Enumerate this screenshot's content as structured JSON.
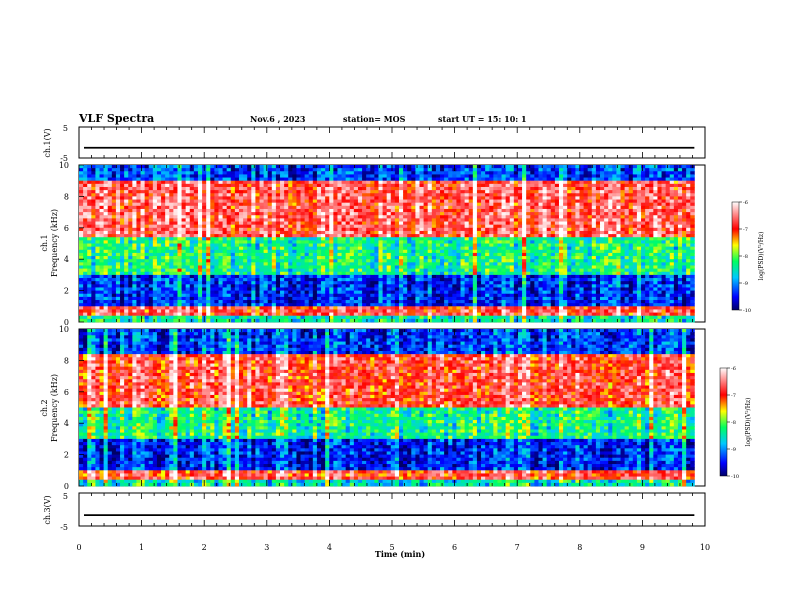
{
  "header": {
    "title": "VLF Spectra",
    "date": "Nov.6 , 2023",
    "station": "station= MOS",
    "start": "start UT = 15: 10: 1"
  },
  "chart_data": [
    {
      "type": "line",
      "ylabel": "ch.1(V)",
      "yticks": [
        "5",
        "-5"
      ],
      "ylim": [
        -5,
        5
      ],
      "xlim": [
        0,
        10
      ],
      "series": [
        {
          "values": [
            -1.7,
            -1.7
          ]
        }
      ]
    },
    {
      "type": "heatmap",
      "ylabel": "ch.1\nFrequency (kHz)",
      "yticks": [
        "10",
        "8",
        "6",
        "4",
        "2",
        "0"
      ],
      "ylim": [
        0,
        10
      ],
      "xlim": [
        0,
        9.83
      ],
      "colorbar": {
        "ticks": [
          "-6",
          "-7",
          "-8",
          "-9",
          "-10"
        ],
        "label": "log(PSD)(V²/Hz)",
        "range": [
          -10,
          -6
        ]
      },
      "bands": [
        {
          "f_low": 0,
          "f_high": 0.5,
          "level": -8.5
        },
        {
          "f_low": 0.5,
          "f_high": 1.0,
          "level": -6.8
        },
        {
          "f_low": 1.0,
          "f_high": 3.0,
          "level": -9.4
        },
        {
          "f_low": 3.0,
          "f_high": 5.5,
          "level": -8.3
        },
        {
          "f_low": 5.5,
          "f_high": 9.0,
          "level": -6.7
        },
        {
          "f_low": 9.0,
          "f_high": 10.0,
          "level": -9.3
        }
      ]
    },
    {
      "type": "heatmap",
      "ylabel": "ch.2\nFrequency (kHz)",
      "yticks": [
        "10",
        "8",
        "6",
        "4",
        "2",
        "0"
      ],
      "ylim": [
        0,
        10
      ],
      "xlim": [
        0,
        9.83
      ],
      "colorbar": {
        "ticks": [
          "-6",
          "-7",
          "-8",
          "-9",
          "-10"
        ],
        "label": "log(PSD)(V²/Hz)",
        "range": [
          -10,
          -6
        ]
      },
      "bands": [
        {
          "f_low": 0,
          "f_high": 0.5,
          "level": -8.5
        },
        {
          "f_low": 0.5,
          "f_high": 1.0,
          "level": -6.8
        },
        {
          "f_low": 1.0,
          "f_high": 3.0,
          "level": -9.4
        },
        {
          "f_low": 3.0,
          "f_high": 5.0,
          "level": -8.3
        },
        {
          "f_low": 5.0,
          "f_high": 8.5,
          "level": -6.8
        },
        {
          "f_low": 8.5,
          "f_high": 10.0,
          "level": -9.3
        }
      ]
    },
    {
      "type": "line",
      "ylabel": "ch.3(V)",
      "yticks": [
        "5",
        "-5"
      ],
      "ylim": [
        -5,
        5
      ],
      "xlim": [
        0,
        10
      ],
      "series": [
        {
          "values": [
            -1.7,
            -1.7
          ]
        }
      ]
    }
  ],
  "xaxis": {
    "label": "Time (min)",
    "ticks": [
      "0",
      "1",
      "2",
      "3",
      "4",
      "5",
      "6",
      "7",
      "8",
      "9",
      "10"
    ]
  }
}
